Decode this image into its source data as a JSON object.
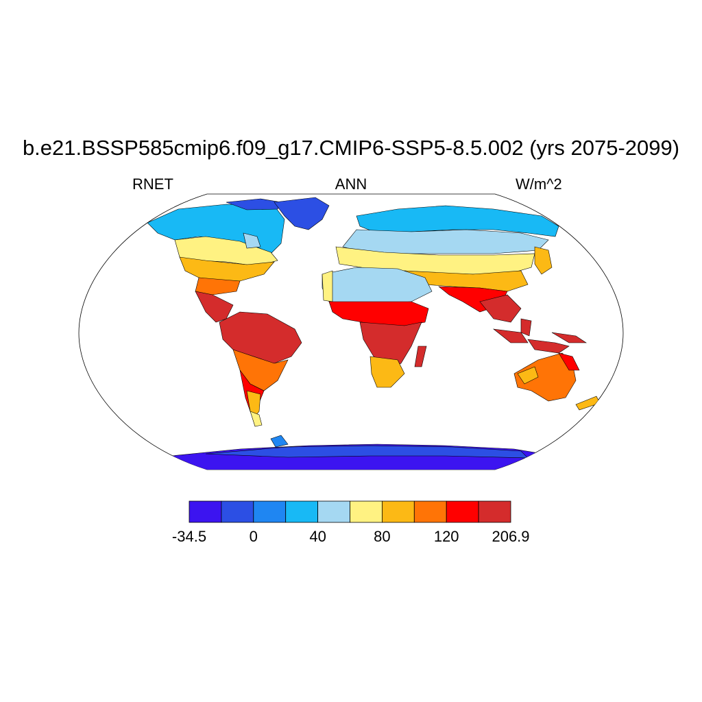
{
  "title": "b.e21.BSSP585cmip6.f09_g17.CMIP6-SSP5-8.5.002 (yrs 2075-2099)",
  "variable": "RNET",
  "season": "ANN",
  "units": "W/m^2",
  "colorbar": {
    "colors": [
      "#3c14f0",
      "#2c4fe4",
      "#1f86f2",
      "#18b9f5",
      "#a5d8f2",
      "#fff282",
      "#fcb915",
      "#ff7406",
      "#ff0000",
      "#d42c2c"
    ],
    "tick_labels": [
      "-34.5",
      "0",
      "40",
      "80",
      "120",
      "206.9"
    ]
  }
}
